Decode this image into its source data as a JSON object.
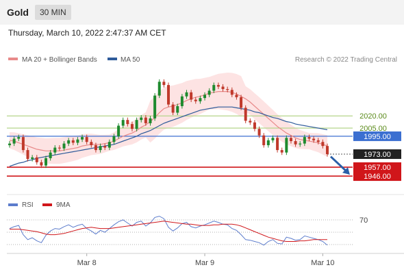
{
  "header": {
    "symbol": "Gold",
    "timeframe": "30 MIN",
    "datetime": "Thursday, March 10, 2022 2:47:37 AM CET"
  },
  "colors": {
    "up": "#1e8a2e",
    "down": "#c0392b",
    "ma20": "#e88a8a",
    "ma50": "#2e5b9a",
    "band_fill": "#fcd9d9",
    "resistance": "#b5d58a",
    "pivot": "#3b6fd1",
    "support": "#d0161a",
    "rsi": "#5c7ccc",
    "rsi_ma": "#d0161a",
    "arrow": "#2a5fa8"
  },
  "chart_data": [
    {
      "type": "candlestick",
      "legend": [
        "MA 20 + Bollinger Bands",
        "MA 50"
      ],
      "legend_placement": "top-left",
      "copyright": "Research © 2022 Trading Central",
      "ylim": [
        1925,
        2080
      ],
      "x_ticks": [
        "Mar 8",
        "Mar 9",
        "Mar 10"
      ],
      "closes": [
        1986,
        1992,
        1994,
        1978,
        1967,
        1969,
        1963,
        1959,
        1968,
        1975,
        1981,
        1980,
        1986,
        1990,
        1987,
        1991,
        1994,
        1988,
        1984,
        1978,
        1983,
        1981,
        1988,
        1995,
        2008,
        2015,
        2010,
        2004,
        2015,
        2018,
        2011,
        2017,
        2045,
        2062,
        2058,
        2034,
        2024,
        2032,
        2044,
        2049,
        2040,
        2038,
        2042,
        2046,
        2051,
        2058,
        2056,
        2053,
        2052,
        2046,
        2043,
        2030,
        2014,
        2012,
        2004,
        1996,
        1984,
        1990,
        1993,
        1978,
        1975,
        1993,
        1989,
        1985,
        1986,
        1994,
        1992,
        1990,
        1988,
        1983,
        1973
      ],
      "ma20": [
        1990,
        1989,
        1987,
        1985,
        1983,
        1981,
        1979,
        1978,
        1977,
        1977,
        1977,
        1977,
        1978,
        1979,
        1980,
        1981,
        1983,
        1984,
        1985,
        1985,
        1985,
        1986,
        1987,
        1989,
        1992,
        1995,
        1997,
        1999,
        2002,
        2006,
        2009,
        2013,
        2018,
        2024,
        2029,
        2031,
        2032,
        2034,
        2036,
        2039,
        2041,
        2043,
        2044,
        2046,
        2048,
        2049,
        2050,
        2050,
        2050,
        2049,
        2047,
        2044,
        2041,
        2037,
        2032,
        2027,
        2022,
        2017,
        2012,
        2007,
        2003,
        1999,
        1996,
        1993,
        1991,
        1990,
        1989,
        1988,
        1987,
        1985,
        1983
      ],
      "ma50": [
        1958,
        1960,
        1962,
        1963,
        1965,
        1966,
        1968,
        1969,
        1970,
        1971,
        1972,
        1973,
        1974,
        1975,
        1976,
        1977,
        1978,
        1979,
        1980,
        1981,
        1982,
        1983,
        1984,
        1985,
        1987,
        1989,
        1991,
        1993,
        1995,
        1998,
        2000,
        2002,
        2005,
        2008,
        2011,
        2013,
        2015,
        2017,
        2019,
        2021,
        2023,
        2025,
        2027,
        2028,
        2029,
        2030,
        2031,
        2031,
        2031,
        2031,
        2030,
        2029,
        2028,
        2027,
        2025,
        2024,
        2022,
        2020,
        2018,
        2017,
        2015,
        2013,
        2012,
        2010,
        2009,
        2008,
        2007,
        2006,
        2005,
        2004,
        2003
      ],
      "levels": [
        {
          "value": 2020.0,
          "label": "2020.00",
          "kind": "resistance"
        },
        {
          "value": 2005.0,
          "label": "2005.00",
          "kind": "resistance"
        },
        {
          "value": 1995.0,
          "label": "1995.00",
          "kind": "pivot"
        },
        {
          "value": 1973.0,
          "label": "1973.00",
          "kind": "last"
        },
        {
          "value": 1957.0,
          "label": "1957.00",
          "kind": "support"
        },
        {
          "value": 1946.0,
          "label": "1946.00",
          "kind": "support"
        }
      ]
    },
    {
      "type": "line",
      "legend": [
        "RSI",
        "9MA"
      ],
      "ylim": [
        20,
        80
      ],
      "y_ticks": [
        "70"
      ],
      "rsi": [
        56,
        59,
        61,
        46,
        38,
        41,
        36,
        33,
        45,
        52,
        56,
        55,
        59,
        62,
        58,
        61,
        63,
        56,
        52,
        47,
        53,
        50,
        56,
        62,
        67,
        70,
        65,
        60,
        66,
        68,
        60,
        65,
        74,
        76,
        72,
        58,
        52,
        57,
        64,
        66,
        59,
        57,
        60,
        62,
        65,
        68,
        66,
        63,
        62,
        56,
        53,
        46,
        38,
        37,
        35,
        33,
        29,
        35,
        38,
        32,
        31,
        42,
        40,
        37,
        38,
        44,
        42,
        40,
        38,
        35,
        29
      ],
      "ma9": [
        55,
        55,
        55,
        54,
        53,
        52,
        51,
        49,
        47,
        46,
        46,
        47,
        48,
        50,
        52,
        54,
        56,
        57,
        58,
        57,
        56,
        56,
        56,
        57,
        58,
        59,
        60,
        61,
        62,
        63,
        64,
        65,
        66,
        67,
        68,
        67,
        66,
        65,
        64,
        63,
        63,
        62,
        61,
        61,
        61,
        62,
        62,
        63,
        63,
        63,
        62,
        60,
        57,
        54,
        51,
        48,
        45,
        42,
        40,
        38,
        36,
        35,
        35,
        35,
        36,
        36,
        37,
        38,
        38,
        38,
        38
      ]
    }
  ]
}
